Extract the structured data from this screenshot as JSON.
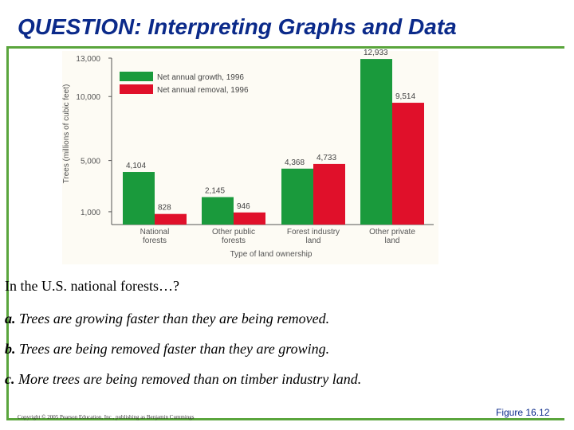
{
  "slide": {
    "title": "QUESTION: Interpreting Graphs and Data",
    "question": "In the U.S. national forests…?",
    "options": [
      {
        "letter": "a.",
        "text": "Trees are growing faster than they are being removed."
      },
      {
        "letter": "b.",
        "text": "Trees are being removed faster than they are growing."
      },
      {
        "letter": "c.",
        "text": "More trees are being removed than on timber industry land."
      }
    ],
    "copyright": "Copyright © 2005 Pearson Education, Inc., publishing as Benjamin Cummings",
    "figure_ref": "Figure 16.12"
  },
  "colors": {
    "title": "#0b2a8a",
    "accent_rule": "#5aa53c",
    "growth": "#1a9a3c",
    "removal": "#e0102a"
  },
  "chart_data": {
    "type": "bar",
    "categories": [
      "National\nforests",
      "Other public\nforests",
      "Forest industry\nland",
      "Other private\nland"
    ],
    "series": [
      {
        "name": "Net annual growth, 1996",
        "values": [
          4104,
          2145,
          4368,
          12933
        ]
      },
      {
        "name": "Net annual removal, 1996",
        "values": [
          828,
          946,
          4733,
          9514
        ]
      }
    ],
    "value_labels": [
      [
        "4,104",
        "2,145",
        "4,368",
        "12,933"
      ],
      [
        "828",
        "946",
        "4,733",
        "9,514"
      ]
    ],
    "yticks": [
      1000,
      5000,
      10000,
      13000
    ],
    "ytick_labels": [
      "1,000",
      "5,000",
      "10,000",
      "13,000"
    ],
    "ylim": [
      0,
      13000
    ],
    "ylabel": "Trees (millions of cubic feet)",
    "xlabel": "Type of land ownership",
    "legend_position": "top-left",
    "grid": false
  }
}
